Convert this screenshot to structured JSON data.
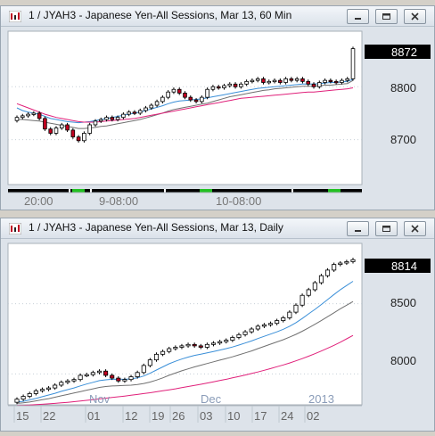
{
  "windows": [
    {
      "title": "1 / JYAH3 - Japanese Yen-All Sessions, Mar 13, 60 Min",
      "last_price": "8872",
      "price_labels": [
        "8800",
        "8700"
      ],
      "time_labels": [
        "20:00",
        "9-08:00",
        "10-08:00"
      ]
    },
    {
      "title": "1 / JYAH3 - Japanese Yen-All Sessions, Mar 13, Daily",
      "last_price": "8814",
      "price_labels": [
        "8500",
        "8000"
      ],
      "month_labels": [
        "Nov",
        "Dec",
        "2013"
      ],
      "day_labels": [
        "15",
        "22",
        "01",
        "12",
        "19",
        "26",
        "03",
        "10",
        "17",
        "24",
        "02"
      ]
    }
  ],
  "icons": {
    "app": "chart-icon",
    "minimize": "minimize-icon",
    "restore": "restore-icon",
    "close": "close-icon"
  },
  "colors": {
    "up_candle": "#ffffff",
    "down_candle": "#c00020",
    "price_line": "#000000",
    "ma_fast": "#3a8fd8",
    "ma_mid": "#707070",
    "ma_slow": "#e0207a",
    "session_marker": "#22c022",
    "last_price_bg": "#000000"
  },
  "chart_data": [
    {
      "type": "candlestick",
      "title": "1 / JYAH3 - Japanese Yen-All Sessions, Mar 13, 60 Min",
      "ylim": [
        8615,
        8905
      ],
      "y_ticks": [
        8800,
        8700
      ],
      "last": 8872,
      "x_labels": [
        "20:00",
        "9-08:00",
        "10-08:00"
      ],
      "series": [
        {
          "values": [
            8742,
            8745,
            8748,
            8750,
            8740,
            8720,
            8712,
            8722,
            8728,
            8718,
            8705,
            8698,
            8712,
            8728,
            8735,
            8738,
            8742,
            8738,
            8742,
            8748,
            8752,
            8750,
            8755,
            8760,
            8765,
            8772,
            8780,
            8790,
            8795,
            8788,
            8780,
            8775,
            8772,
            8780,
            8795,
            8800,
            8798,
            8802,
            8805,
            8800,
            8805,
            8810,
            8812,
            8815,
            8808,
            8810,
            8812,
            8808,
            8815,
            8812,
            8815,
            8810,
            8805,
            8800,
            8808,
            8812,
            8810,
            8808,
            8812,
            8815,
            8872
          ]
        },
        {
          "values": [
            8760,
            8755,
            8752,
            8750,
            8748,
            8744,
            8740,
            8738,
            8736,
            8734,
            8733,
            8732,
            8733,
            8734,
            8736,
            8738,
            8740,
            8742,
            8744,
            8746,
            8748,
            8750,
            8752,
            8755,
            8758,
            8761,
            8764,
            8768,
            8771,
            8773,
            8774,
            8775,
            8776,
            8777,
            8779,
            8781,
            8783,
            8785,
            8787,
            8789,
            8791,
            8793,
            8795,
            8797,
            8798,
            8799,
            8800,
            8801,
            8802,
            8803,
            8804,
            8805,
            8805,
            8805,
            8806,
            8807,
            8808,
            8808,
            8809,
            8810,
            8814
          ]
        },
        {
          "values": [
            8738,
            8738,
            8737,
            8736,
            8735,
            8733,
            8731,
            8729,
            8727,
            8725,
            8723,
            8721,
            8721,
            8722,
            8723,
            8725,
            8726,
            8728,
            8730,
            8732,
            8734,
            8736,
            8738,
            8741,
            8744,
            8747,
            8750,
            8754,
            8757,
            8759,
            8761,
            8763,
            8765,
            8767,
            8769,
            8772,
            8775,
            8778,
            8781,
            8783,
            8785,
            8787,
            8789,
            8791,
            8793,
            8794,
            8796,
            8797,
            8798,
            8799,
            8800,
            8801,
            8801,
            8801,
            8802,
            8803,
            8803,
            8804,
            8805,
            8806,
            8812
          ]
        },
        {
          "values": [
            8768,
            8764,
            8760,
            8756,
            8752,
            8748,
            8745,
            8742,
            8740,
            8738,
            8736,
            8734,
            8733,
            8733,
            8733,
            8734,
            8735,
            8736,
            8737,
            8738,
            8739,
            8740,
            8742,
            8744,
            8746,
            8748,
            8750,
            8752,
            8754,
            8756,
            8758,
            8760,
            8762,
            8764,
            8766,
            8768,
            8770,
            8772,
            8774,
            8776,
            8778,
            8779,
            8780,
            8781,
            8782,
            8783,
            8784,
            8785,
            8786,
            8787,
            8788,
            8789,
            8790,
            8790,
            8791,
            8792,
            8793,
            8794,
            8795,
            8796,
            8798
          ]
        }
      ]
    },
    {
      "type": "candlestick",
      "title": "1 / JYAH3 - Japanese Yen-All Sessions, Mar 13, Daily",
      "ylim": [
        7780,
        8930
      ],
      "y_ticks": [
        8500,
        8000
      ],
      "last": 8814,
      "x_labels": [
        "15",
        "22",
        "01",
        "12",
        "19",
        "26",
        "03",
        "10",
        "17",
        "24",
        "02"
      ],
      "month_labels": [
        "Nov",
        "Dec",
        "2013"
      ],
      "series": [
        {
          "values": [
            7820,
            7840,
            7860,
            7880,
            7890,
            7900,
            7920,
            7940,
            7950,
            7960,
            7990,
            7995,
            8010,
            8020,
            7990,
            7970,
            7950,
            7960,
            7980,
            8010,
            8060,
            8100,
            8140,
            8160,
            8180,
            8190,
            8200,
            8210,
            8200,
            8190,
            8210,
            8220,
            8230,
            8240,
            8260,
            8280,
            8300,
            8320,
            8340,
            8350,
            8360,
            8380,
            8400,
            8440,
            8490,
            8560,
            8600,
            8650,
            8700,
            8740,
            8780,
            8790,
            8800,
            8814
          ]
        },
        {
          "values": [
            7800,
            7805,
            7815,
            7825,
            7838,
            7850,
            7862,
            7876,
            7888,
            7900,
            7915,
            7928,
            7940,
            7952,
            7958,
            7962,
            7962,
            7962,
            7965,
            7972,
            7985,
            8005,
            8028,
            8050,
            8072,
            8090,
            8106,
            8120,
            8132,
            8140,
            8150,
            8160,
            8170,
            8180,
            8192,
            8206,
            8220,
            8235,
            8252,
            8268,
            8284,
            8300,
            8318,
            8340,
            8365,
            8395,
            8428,
            8460,
            8494,
            8530,
            8566,
            8600,
            8630,
            8660
          ]
        },
        {
          "values": [
            7790,
            7794,
            7800,
            7808,
            7816,
            7824,
            7834,
            7844,
            7854,
            7864,
            7874,
            7884,
            7894,
            7904,
            7910,
            7914,
            7916,
            7918,
            7920,
            7924,
            7932,
            7942,
            7956,
            7972,
            7990,
            8006,
            8022,
            8036,
            8050,
            8062,
            8074,
            8086,
            8098,
            8110,
            8122,
            8136,
            8150,
            8164,
            8180,
            8196,
            8212,
            8228,
            8244,
            8262,
            8282,
            8304,
            8328,
            8354,
            8380,
            8408,
            8436,
            8464,
            8490,
            8516
          ]
        },
        {
          "values": [
            7775,
            7776,
            7778,
            7781,
            7784,
            7787,
            7790,
            7794,
            7798,
            7802,
            7807,
            7812,
            7817,
            7822,
            7827,
            7832,
            7837,
            7842,
            7848,
            7854,
            7860,
            7866,
            7873,
            7880,
            7887,
            7894,
            7902,
            7910,
            7918,
            7926,
            7935,
            7944,
            7953,
            7962,
            7972,
            7982,
            7992,
            8003,
            8014,
            8026,
            8038,
            8051,
            8064,
            8078,
            8093,
            8109,
            8126,
            8144,
            8163,
            8183,
            8204,
            8226,
            8250,
            8274
          ]
        }
      ]
    }
  ]
}
